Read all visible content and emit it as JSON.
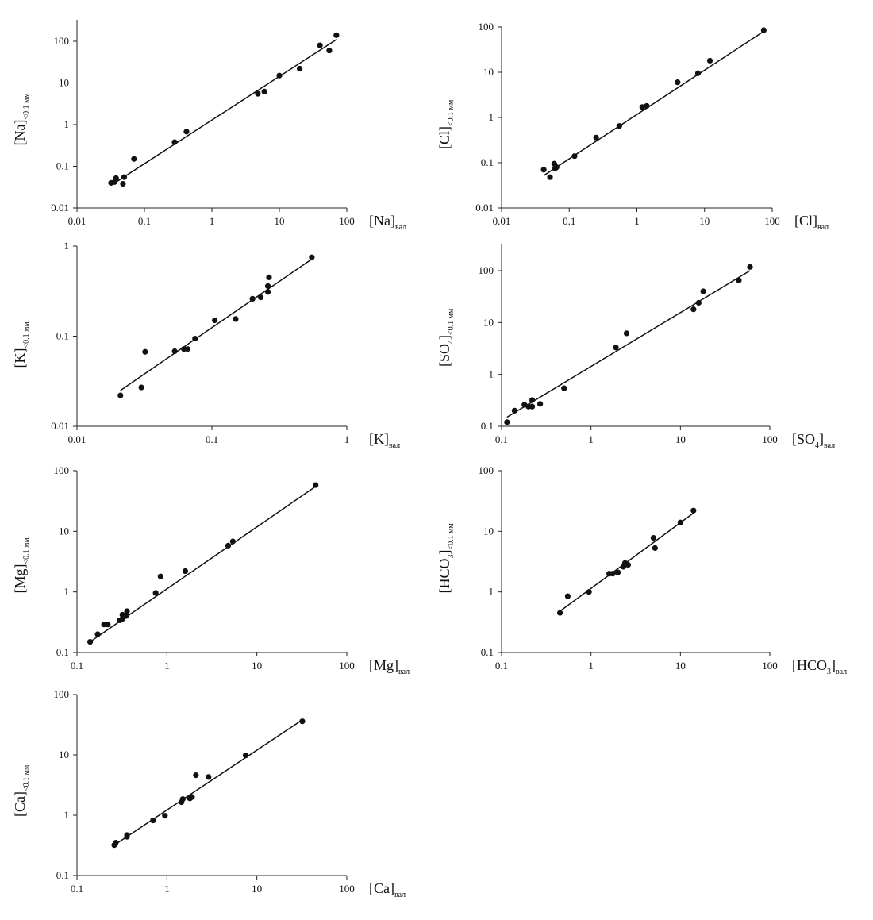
{
  "chart_data": [
    {
      "type": "scatter",
      "xlabel": "[Na]",
      "xlabel_sub": "вал",
      "ylabel": "[Na]",
      "ylabel_sub": "<0.1 мм",
      "x_scale": "log",
      "y_scale": "log",
      "xlim": [
        0.01,
        100
      ],
      "ylim": [
        0.01,
        300
      ],
      "x_ticks": [
        "0.01",
        "0.1",
        "1",
        "10",
        "100"
      ],
      "y_ticks": [
        "0.01",
        "0.1",
        "1",
        "10",
        "100"
      ],
      "x_tick_values": [
        0.01,
        0.1,
        1,
        10,
        100
      ],
      "y_tick_values": [
        0.01,
        0.1,
        1,
        10,
        100
      ],
      "grid": false,
      "points": [
        [
          0.032,
          0.04
        ],
        [
          0.036,
          0.042
        ],
        [
          0.038,
          0.052
        ],
        [
          0.048,
          0.038
        ],
        [
          0.05,
          0.055
        ],
        [
          0.07,
          0.15
        ],
        [
          0.28,
          0.38
        ],
        [
          0.42,
          0.68
        ],
        [
          4.8,
          5.5
        ],
        [
          6,
          6.2
        ],
        [
          10,
          15
        ],
        [
          20,
          22
        ],
        [
          40,
          80
        ],
        [
          55,
          60
        ],
        [
          70,
          140
        ]
      ],
      "fit_line": [
        [
          0.032,
          0.035
        ],
        [
          70,
          110
        ]
      ]
    },
    {
      "type": "scatter",
      "xlabel": "[Cl]",
      "xlabel_sub": "вал",
      "ylabel": "[Cl]",
      "ylabel_sub": "<0.1 мм",
      "x_scale": "log",
      "y_scale": "log",
      "xlim": [
        0.01,
        100
      ],
      "ylim": [
        0.01,
        100
      ],
      "x_ticks": [
        "0.01",
        "0.1",
        "1",
        "10",
        "100"
      ],
      "y_ticks": [
        "0.01",
        "0.1",
        "1",
        "10",
        "100"
      ],
      "x_tick_values": [
        0.01,
        0.1,
        1,
        10,
        100
      ],
      "y_tick_values": [
        0.01,
        0.1,
        1,
        10,
        100
      ],
      "grid": false,
      "points": [
        [
          0.042,
          0.07
        ],
        [
          0.052,
          0.048
        ],
        [
          0.06,
          0.095
        ],
        [
          0.062,
          0.075
        ],
        [
          0.065,
          0.08
        ],
        [
          0.12,
          0.14
        ],
        [
          0.25,
          0.36
        ],
        [
          0.55,
          0.65
        ],
        [
          1.2,
          1.7
        ],
        [
          1.4,
          1.8
        ],
        [
          4,
          6
        ],
        [
          8,
          9.5
        ],
        [
          12,
          18
        ],
        [
          75,
          85
        ]
      ],
      "fit_line": [
        [
          0.042,
          0.052
        ],
        [
          75,
          80
        ]
      ]
    },
    {
      "type": "scatter",
      "xlabel": "[K]",
      "xlabel_sub": "вал",
      "ylabel": "[K]",
      "ylabel_sub": "<0.1 мм",
      "x_scale": "log",
      "y_scale": "log",
      "xlim": [
        0.01,
        1
      ],
      "ylim": [
        0.01,
        1
      ],
      "x_ticks": [
        "0.01",
        "0.1",
        "1"
      ],
      "y_ticks": [
        "0.01",
        "0.1",
        "1"
      ],
      "x_tick_values": [
        0.01,
        0.1,
        1
      ],
      "y_tick_values": [
        0.01,
        0.1,
        1
      ],
      "grid": false,
      "points": [
        [
          0.021,
          0.022
        ],
        [
          0.03,
          0.027
        ],
        [
          0.032,
          0.067
        ],
        [
          0.053,
          0.068
        ],
        [
          0.062,
          0.072
        ],
        [
          0.066,
          0.072
        ],
        [
          0.075,
          0.094
        ],
        [
          0.105,
          0.15
        ],
        [
          0.15,
          0.155
        ],
        [
          0.2,
          0.26
        ],
        [
          0.23,
          0.27
        ],
        [
          0.26,
          0.31
        ],
        [
          0.26,
          0.36
        ],
        [
          0.265,
          0.45
        ],
        [
          0.55,
          0.75
        ]
      ],
      "fit_line": [
        [
          0.021,
          0.025
        ],
        [
          0.56,
          0.73
        ]
      ]
    },
    {
      "type": "scatter",
      "xlabel": "[SO4]",
      "xlabel_sub": "вал",
      "ylabel": "[SO4]",
      "ylabel_sub": "<0.1 мм",
      "x_scale": "log",
      "y_scale": "log",
      "xlim": [
        0.1,
        100
      ],
      "ylim": [
        0.1,
        300
      ],
      "x_ticks": [
        "0.1",
        "1",
        "10",
        "100"
      ],
      "y_ticks": [
        "0.1",
        "1",
        "10",
        "100"
      ],
      "x_tick_values": [
        0.1,
        1,
        10,
        100
      ],
      "y_tick_values": [
        0.1,
        1,
        10,
        100
      ],
      "grid": false,
      "points": [
        [
          0.115,
          0.12
        ],
        [
          0.14,
          0.2
        ],
        [
          0.18,
          0.26
        ],
        [
          0.2,
          0.24
        ],
        [
          0.22,
          0.24
        ],
        [
          0.22,
          0.32
        ],
        [
          0.27,
          0.27
        ],
        [
          0.5,
          0.54
        ],
        [
          1.9,
          3.3
        ],
        [
          2.5,
          6.2
        ],
        [
          14,
          18
        ],
        [
          16,
          24
        ],
        [
          18,
          40
        ],
        [
          45,
          65
        ],
        [
          60,
          118
        ]
      ],
      "fit_line": [
        [
          0.115,
          0.15
        ],
        [
          60,
          100
        ]
      ]
    },
    {
      "type": "scatter",
      "xlabel": "[Mg]",
      "xlabel_sub": "вал",
      "ylabel": "[Mg]",
      "ylabel_sub": "<0.1 мм",
      "x_scale": "log",
      "y_scale": "log",
      "xlim": [
        0.1,
        100
      ],
      "ylim": [
        0.1,
        100
      ],
      "x_ticks": [
        "0.1",
        "1",
        "10",
        "100"
      ],
      "y_ticks": [
        "0.1",
        "1",
        "10",
        "100"
      ],
      "x_tick_values": [
        0.1,
        1,
        10,
        100
      ],
      "y_tick_values": [
        0.1,
        1,
        10,
        100
      ],
      "grid": false,
      "points": [
        [
          0.14,
          0.15
        ],
        [
          0.17,
          0.2
        ],
        [
          0.2,
          0.29
        ],
        [
          0.22,
          0.29
        ],
        [
          0.3,
          0.34
        ],
        [
          0.32,
          0.36
        ],
        [
          0.32,
          0.42
        ],
        [
          0.35,
          0.4
        ],
        [
          0.36,
          0.48
        ],
        [
          0.75,
          0.96
        ],
        [
          0.85,
          1.8
        ],
        [
          1.6,
          2.2
        ],
        [
          4.8,
          5.8
        ],
        [
          5.4,
          6.8
        ],
        [
          45,
          58
        ]
      ],
      "fit_line": [
        [
          0.14,
          0.15
        ],
        [
          45,
          55
        ]
      ]
    },
    {
      "type": "scatter",
      "xlabel": "[HCO3]",
      "xlabel_sub": "вал",
      "ylabel": "[HCO3]",
      "ylabel_sub": "<0.1 мм",
      "x_scale": "log",
      "y_scale": "log",
      "xlim": [
        0.1,
        100
      ],
      "ylim": [
        0.1,
        100
      ],
      "x_ticks": [
        "0.1",
        "1",
        "10",
        "100"
      ],
      "y_ticks": [
        "0.1",
        "1",
        "10",
        "100"
      ],
      "x_tick_values": [
        0.1,
        1,
        10,
        100
      ],
      "y_tick_values": [
        0.1,
        1,
        10,
        100
      ],
      "grid": false,
      "points": [
        [
          0.45,
          0.45
        ],
        [
          0.55,
          0.85
        ],
        [
          0.95,
          1.0
        ],
        [
          1.6,
          2.0
        ],
        [
          1.75,
          2.0
        ],
        [
          2.0,
          2.1
        ],
        [
          2.3,
          2.6
        ],
        [
          2.4,
          3.0
        ],
        [
          2.6,
          2.8
        ],
        [
          5,
          7.8
        ],
        [
          5.2,
          5.3
        ],
        [
          10,
          14
        ],
        [
          14,
          22
        ]
      ],
      "fit_line": [
        [
          0.45,
          0.48
        ],
        [
          14,
          20
        ]
      ]
    },
    {
      "type": "scatter",
      "xlabel": "[Ca]",
      "xlabel_sub": "вал",
      "ylabel": "[Ca]",
      "ylabel_sub": "<0.1 мм",
      "x_scale": "log",
      "y_scale": "log",
      "xlim": [
        0.1,
        100
      ],
      "ylim": [
        0.1,
        100
      ],
      "x_ticks": [
        "0.1",
        "1",
        "10",
        "100"
      ],
      "y_ticks": [
        "0.1",
        "1",
        "10",
        "100"
      ],
      "x_tick_values": [
        0.1,
        1,
        10,
        100
      ],
      "y_tick_values": [
        0.1,
        1,
        10,
        100
      ],
      "grid": false,
      "points": [
        [
          0.26,
          0.32
        ],
        [
          0.27,
          0.35
        ],
        [
          0.36,
          0.47
        ],
        [
          0.36,
          0.44
        ],
        [
          0.7,
          0.82
        ],
        [
          0.95,
          0.98
        ],
        [
          1.45,
          1.65
        ],
        [
          1.5,
          1.85
        ],
        [
          1.8,
          1.9
        ],
        [
          1.9,
          2.0
        ],
        [
          2.1,
          4.6
        ],
        [
          2.9,
          4.3
        ],
        [
          7.5,
          9.8
        ],
        [
          32,
          36
        ]
      ],
      "fit_line": [
        [
          0.26,
          0.32
        ],
        [
          32,
          38
        ]
      ]
    }
  ]
}
